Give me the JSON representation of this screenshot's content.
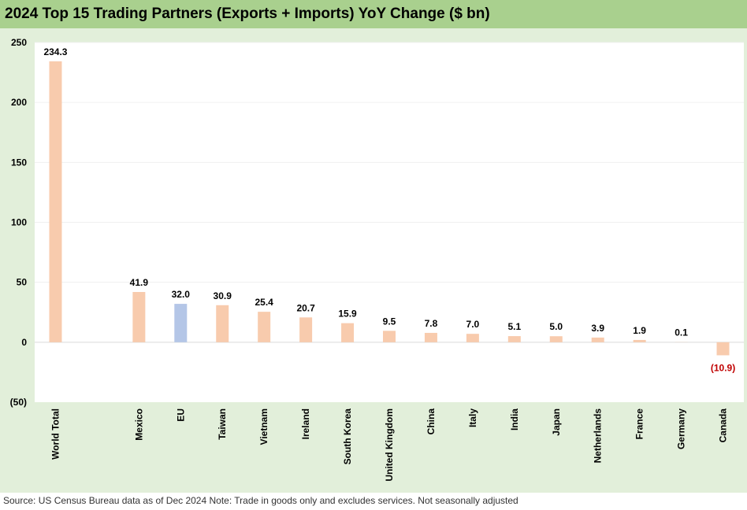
{
  "title": "2024 Top 15 Trading Partners (Exports + Imports) YoY Change ($ bn)",
  "source_note": "Source: US Census Bureau data as of Dec 2024 Note: Trade in goods only and excludes services. Not seasonally adjusted",
  "colors": {
    "title_bg": "#a9d08e",
    "chart_bg": "#e2efda",
    "plot_bg": "#ffffff",
    "bar_default": "#f8cbad",
    "bar_highlight": "#b4c6e7",
    "negative_label": "#c00000"
  },
  "chart_data": {
    "type": "bar",
    "categories": [
      "World Total",
      "",
      "Mexico",
      "EU",
      "Taiwan",
      "Vietnam",
      "Ireland",
      "South Korea",
      "United Kingdom",
      "China",
      "Italy",
      "India",
      "Japan",
      "Netherlands",
      "France",
      "Germany",
      "Canada"
    ],
    "values": [
      234.3,
      null,
      41.9,
      32.0,
      30.9,
      25.4,
      20.7,
      15.9,
      9.5,
      7.8,
      7.0,
      5.1,
      5.0,
      3.9,
      1.9,
      0.1,
      -10.9
    ],
    "data_labels": [
      "234.3",
      "",
      "41.9",
      "32.0",
      "30.9",
      "25.4",
      "20.7",
      "15.9",
      "9.5",
      "7.8",
      "7.0",
      "5.1",
      "5.0",
      "3.9",
      "1.9",
      "0.1",
      "(10.9)"
    ],
    "highlight": [
      "EU"
    ],
    "ylim": [
      -50,
      250
    ],
    "yticks": [
      250,
      200,
      150,
      100,
      50,
      0,
      -50
    ],
    "ytick_labels": [
      "250",
      "200",
      "150",
      "100",
      "50",
      "0",
      "(50)"
    ],
    "grid": true,
    "xlabel": "",
    "ylabel": ""
  }
}
